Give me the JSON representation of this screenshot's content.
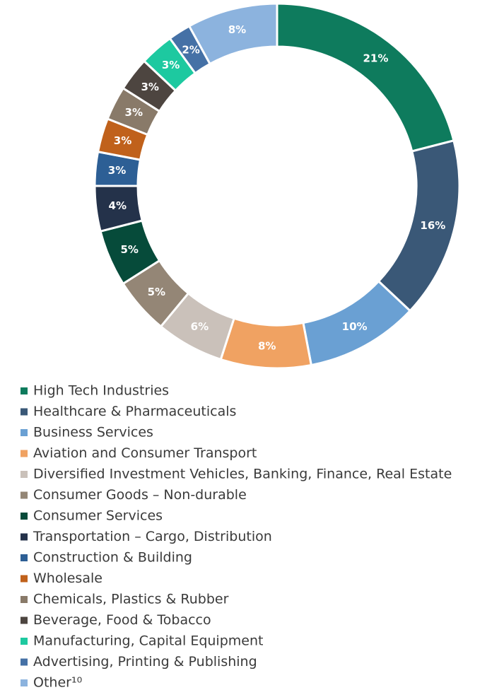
{
  "chart_data": {
    "type": "donut",
    "categories": [
      "High Tech Industries",
      "Healthcare & Pharmaceuticals",
      "Business Services",
      "Aviation and Consumer Transport",
      "Diversified Investment Vehicles, Banking, Finance, Real Estate",
      "Consumer Goods – Non-durable",
      "Consumer Services",
      "Transportation – Cargo, Distribution",
      "Construction & Building",
      "Wholesale",
      "Chemicals, Plastics & Rubber",
      "Beverage, Food & Tobacco",
      "Manufacturing, Capital Equipment",
      "Advertising, Printing & Publishing",
      "Other¹⁰"
    ],
    "values": [
      21,
      16,
      10,
      8,
      6,
      5,
      5,
      4,
      3,
      3,
      3,
      3,
      3,
      2,
      8
    ],
    "value_labels": [
      "21%",
      "16%",
      "10%",
      "8%",
      "6%",
      "5%",
      "5%",
      "4%",
      "3%",
      "3%",
      "3%",
      "3%",
      "3%",
      "2%",
      "8%"
    ],
    "colors": [
      "#0e7b5d",
      "#3a5877",
      "#6aa0d3",
      "#f0a262",
      "#cac1ba",
      "#948676",
      "#064b3a",
      "#24324a",
      "#2d5f95",
      "#c0611b",
      "#897a69",
      "#4d4540",
      "#1dc9a0",
      "#4571a6",
      "#8cb3de"
    ],
    "legend": "bottom-left"
  }
}
